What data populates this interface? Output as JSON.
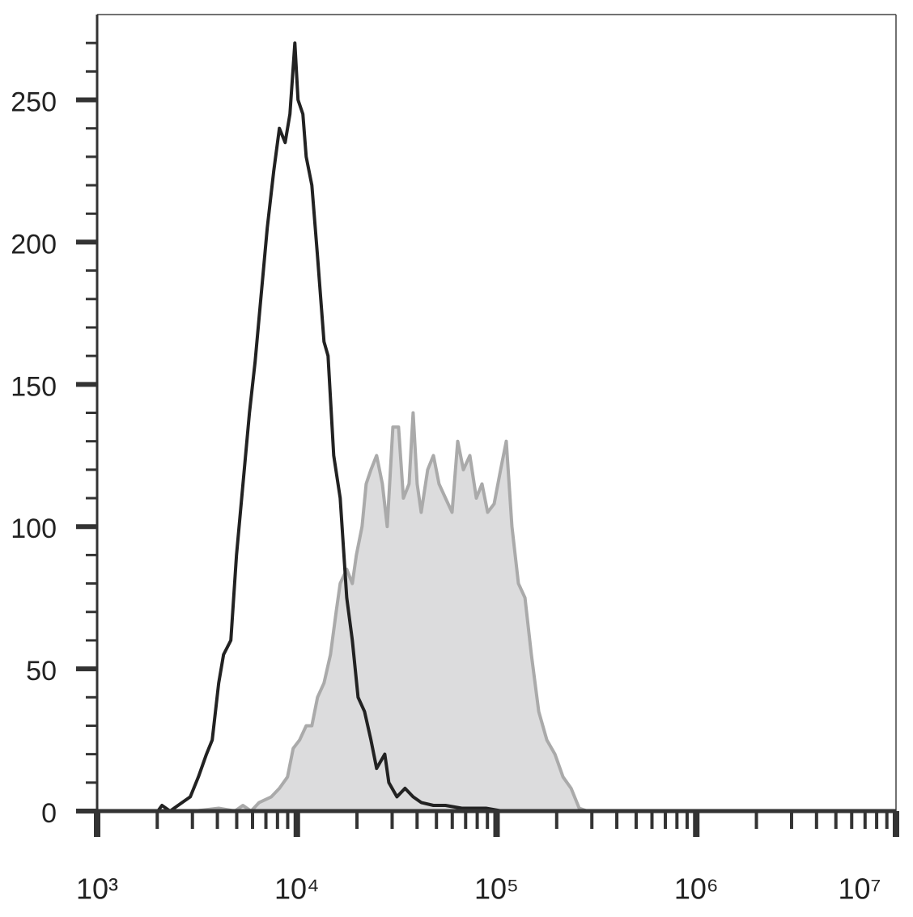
{
  "chart_data": {
    "type": "histogram-overlay",
    "xscale": "log",
    "xlim": [
      1000,
      10000000
    ],
    "xticks": [
      {
        "value": 1000,
        "label": "10³"
      },
      {
        "value": 10000,
        "label": "10⁴"
      },
      {
        "value": 100000,
        "label": "10⁵"
      },
      {
        "value": 1000000,
        "label": "10⁶"
      },
      {
        "value": 10000000,
        "label": "10⁷"
      }
    ],
    "xminorticks": [
      2000,
      3000,
      4000,
      5000,
      6000,
      7000,
      8000,
      9000,
      20000,
      30000,
      40000,
      50000,
      60000,
      70000,
      80000,
      90000,
      200000,
      300000,
      400000,
      500000,
      600000,
      700000,
      800000,
      900000,
      2000000,
      3000000,
      4000000,
      5000000,
      6000000,
      7000000,
      8000000,
      9000000
    ],
    "ylim": [
      0,
      280
    ],
    "yticks": [
      0,
      50,
      100,
      150,
      200,
      250
    ],
    "yminorticks": [
      10,
      20,
      30,
      40,
      60,
      70,
      80,
      90,
      110,
      120,
      130,
      140,
      160,
      170,
      180,
      190,
      210,
      220,
      230,
      240,
      260,
      270
    ],
    "series": [
      {
        "color": "#aaaaaa",
        "fill": "#dcdcdd",
        "x": [
          1000,
          3068,
          4060,
          4893,
          5370,
          5899,
          6477,
          7451,
          8180,
          8980,
          9587,
          10330,
          11140,
          11890,
          12690,
          13680,
          14740,
          15730,
          16480,
          17770,
          18960,
          19870,
          21210,
          22230,
          23500,
          25090,
          26790,
          28340,
          30250,
          32290,
          34160,
          36470,
          38220,
          40050,
          41960,
          45210,
          48280,
          51520,
          55520,
          59840,
          63880,
          68190,
          73480,
          79170,
          84530,
          90240,
          97200,
          104800,
          111900,
          119400,
          128700,
          138700,
          149400,
          162600,
          178500,
          196000,
          215100,
          236200,
          259300,
          284700,
          10000000
        ],
        "values": [
          0,
          0,
          1,
          0,
          2,
          0,
          3,
          5,
          8,
          12,
          22,
          25,
          30,
          30,
          40,
          45,
          55,
          70,
          80,
          85,
          80,
          90,
          100,
          115,
          120,
          125,
          115,
          100,
          135,
          135,
          110,
          115,
          140,
          115,
          105,
          120,
          125,
          115,
          110,
          105,
          130,
          120,
          125,
          110,
          115,
          105,
          108,
          120,
          130,
          100,
          80,
          75,
          55,
          35,
          25,
          20,
          12,
          8,
          1,
          0,
          0
        ]
      },
      {
        "color": "#222222",
        "x": [
          1000,
          2014,
          2111,
          2318,
          2667,
          2928,
          3215,
          3529,
          3769,
          4060,
          4295,
          4672,
          4986,
          5373,
          5789,
          6182,
          6598,
          7109,
          7663,
          8182,
          8736,
          9237,
          9770,
          10140,
          10720,
          11140,
          11890,
          12690,
          13680,
          14330,
          15300,
          16480,
          17770,
          18960,
          20250,
          21820,
          23500,
          25090,
          27560,
          28870,
          31700,
          34810,
          38220,
          41960,
          48280,
          55520,
          66930,
          88600,
          106800,
          10000000
        ],
        "values": [
          0,
          0,
          2,
          0,
          3,
          5,
          12,
          20,
          25,
          45,
          55,
          60,
          90,
          115,
          140,
          158,
          180,
          205,
          225,
          240,
          235,
          245,
          270,
          250,
          245,
          230,
          220,
          195,
          165,
          160,
          125,
          110,
          75,
          60,
          40,
          35,
          25,
          15,
          20,
          10,
          5,
          8,
          5,
          3,
          2,
          2,
          1,
          1,
          0,
          0
        ]
      }
    ]
  }
}
